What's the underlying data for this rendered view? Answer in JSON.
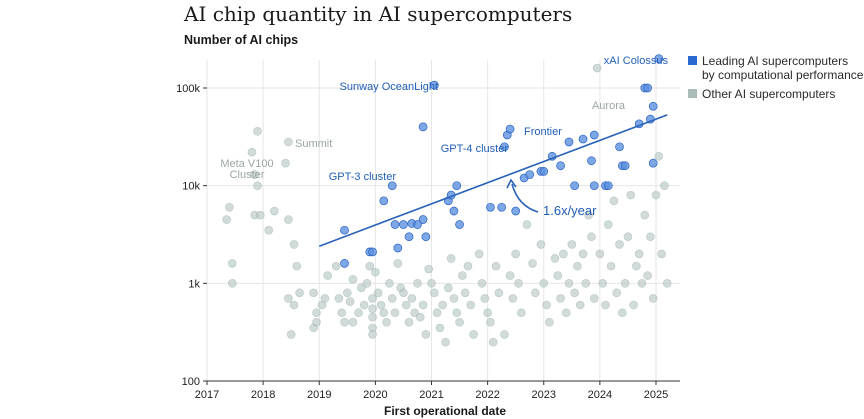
{
  "title": "AI chip quantity in AI supercomputers",
  "colors": {
    "leading": "#2a6ad0",
    "other": "#a9bcb9",
    "trend": "#2a63b8"
  },
  "chart_data": {
    "type": "scatter",
    "title": "AI chip quantity in AI supercomputers",
    "ylabel": "Number of AI chips",
    "xlabel": "First operational date",
    "yscale": "log",
    "ylim": [
      100,
      200000
    ],
    "xlim": [
      2017,
      2025.25
    ],
    "x_ticks": [
      {
        "v": 2017,
        "label": "2017"
      },
      {
        "v": 2018,
        "label": "2018"
      },
      {
        "v": 2019,
        "label": "2019"
      },
      {
        "v": 2020,
        "label": "2020"
      },
      {
        "v": 2021,
        "label": "2021"
      },
      {
        "v": 2022,
        "label": "2022"
      },
      {
        "v": 2023,
        "label": "2023"
      },
      {
        "v": 2024,
        "label": "2024"
      },
      {
        "v": 2025,
        "label": "2025"
      }
    ],
    "y_ticks": [
      {
        "v": 100,
        "label": "100"
      },
      {
        "v": 1000,
        "label": "1k"
      },
      {
        "v": 10000,
        "label": "10k"
      },
      {
        "v": 100000,
        "label": "100k"
      }
    ],
    "legend": [
      {
        "name": "Leading AI supercomputers by computational performance",
        "lines": [
          "Leading AI supercomputers",
          "by computational performance"
        ],
        "color": "#2a6ad0"
      },
      {
        "name": "Other AI supercomputers",
        "lines": [
          "Other AI supercomputers"
        ],
        "color": "#a9bcb9"
      }
    ],
    "trend": {
      "rate_label": "1.6x/year",
      "x": [
        2019,
        2025.2
      ],
      "y": [
        2400,
        53000
      ]
    },
    "annotations": [
      {
        "text": "xAI Colossus",
        "x": 2025.05,
        "y": 200000,
        "series": "leading"
      },
      {
        "text": "Sunway OceanLight",
        "x": 2021.05,
        "y": 107000,
        "series": "leading"
      },
      {
        "text": "Frontier",
        "x": 2022.4,
        "y": 38000,
        "series": "leading"
      },
      {
        "text": "GPT-4 cluster",
        "x": 2022.3,
        "y": 25000,
        "series": "leading"
      },
      {
        "text": "GPT-3 cluster",
        "x": 2020.3,
        "y": 10000,
        "series": "leading"
      },
      {
        "text": "Aurora",
        "x": 2024.2,
        "y": 63000,
        "series": "other"
      },
      {
        "text": "Summit",
        "x": 2018.4,
        "y": 28000,
        "series": "other"
      },
      {
        "text": "Meta V100 Cluster",
        "lines": [
          "Meta V100",
          "Cluster"
        ],
        "x": 2017.85,
        "y": 20000,
        "series": "other"
      }
    ],
    "series": [
      {
        "name": "Leading AI supercomputers",
        "points": [
          [
            2019.45,
            3500
          ],
          [
            2019.45,
            1600
          ],
          [
            2019.9,
            2100
          ],
          [
            2019.95,
            2100
          ],
          [
            2020.15,
            7000
          ],
          [
            2020.3,
            10000
          ],
          [
            2020.35,
            4000
          ],
          [
            2020.4,
            2300
          ],
          [
            2020.5,
            4000
          ],
          [
            2020.6,
            3000
          ],
          [
            2020.65,
            4100
          ],
          [
            2020.75,
            4000
          ],
          [
            2020.85,
            4500
          ],
          [
            2020.85,
            40000
          ],
          [
            2020.9,
            3000
          ],
          [
            2021.05,
            107000
          ],
          [
            2021.3,
            7000
          ],
          [
            2021.35,
            8000
          ],
          [
            2021.4,
            5500
          ],
          [
            2021.45,
            10000
          ],
          [
            2021.5,
            4000
          ],
          [
            2022.05,
            6000
          ],
          [
            2022.25,
            6000
          ],
          [
            2022.3,
            25000
          ],
          [
            2022.35,
            33000
          ],
          [
            2022.4,
            38000
          ],
          [
            2022.5,
            5500
          ],
          [
            2022.65,
            12000
          ],
          [
            2022.75,
            13000
          ],
          [
            2022.95,
            14000
          ],
          [
            2023.0,
            14000
          ],
          [
            2023.15,
            20000
          ],
          [
            2023.3,
            16000
          ],
          [
            2023.45,
            28000
          ],
          [
            2023.55,
            10000
          ],
          [
            2023.7,
            30000
          ],
          [
            2023.85,
            18000
          ],
          [
            2023.9,
            33000
          ],
          [
            2023.9,
            10000
          ],
          [
            2024.1,
            10000
          ],
          [
            2024.15,
            10000
          ],
          [
            2024.4,
            16000
          ],
          [
            2024.45,
            16000
          ],
          [
            2024.35,
            25000
          ],
          [
            2024.7,
            43000
          ],
          [
            2024.8,
            100000
          ],
          [
            2024.85,
            100000
          ],
          [
            2024.9,
            48000
          ],
          [
            2024.95,
            65000
          ],
          [
            2024.95,
            17000
          ],
          [
            2025.05,
            200000
          ]
        ]
      },
      {
        "name": "Other AI supercomputers",
        "points": [
          [
            2017.35,
            4500
          ],
          [
            2017.4,
            6000
          ],
          [
            2017.45,
            1600
          ],
          [
            2017.45,
            1000
          ],
          [
            2017.8,
            22000
          ],
          [
            2017.9,
            36000
          ],
          [
            2017.85,
            13000
          ],
          [
            2017.9,
            10000
          ],
          [
            2017.85,
            5000
          ],
          [
            2017.95,
            5000
          ],
          [
            2018.1,
            3500
          ],
          [
            2018.2,
            5500
          ],
          [
            2018.4,
            17000
          ],
          [
            2018.45,
            28000
          ],
          [
            2018.45,
            4500
          ],
          [
            2018.45,
            700
          ],
          [
            2018.55,
            600
          ],
          [
            2018.5,
            300
          ],
          [
            2018.6,
            1500
          ],
          [
            2018.65,
            800
          ],
          [
            2018.55,
            2500
          ],
          [
            2018.9,
            350
          ],
          [
            2018.95,
            400
          ],
          [
            2018.95,
            500
          ],
          [
            2018.9,
            800
          ],
          [
            2019.05,
            600
          ],
          [
            2019.1,
            700
          ],
          [
            2019.15,
            1200
          ],
          [
            2019.3,
            1500
          ],
          [
            2019.35,
            700
          ],
          [
            2019.4,
            500
          ],
          [
            2019.45,
            400
          ],
          [
            2019.5,
            800
          ],
          [
            2019.55,
            650
          ],
          [
            2019.6,
            1100
          ],
          [
            2019.6,
            400
          ],
          [
            2019.7,
            500
          ],
          [
            2019.75,
            900
          ],
          [
            2019.8,
            600
          ],
          [
            2019.85,
            1000
          ],
          [
            2019.9,
            1500
          ],
          [
            2019.95,
            700
          ],
          [
            2019.95,
            550
          ],
          [
            2019.95,
            450
          ],
          [
            2019.95,
            350
          ],
          [
            2019.95,
            300
          ],
          [
            2020.0,
            1300
          ],
          [
            2020.05,
            800
          ],
          [
            2020.1,
            600
          ],
          [
            2020.15,
            500
          ],
          [
            2020.2,
            400
          ],
          [
            2020.25,
            1000
          ],
          [
            2020.3,
            700
          ],
          [
            2020.35,
            500
          ],
          [
            2020.4,
            1600
          ],
          [
            2020.45,
            900
          ],
          [
            2020.5,
            800
          ],
          [
            2020.55,
            600
          ],
          [
            2020.6,
            400
          ],
          [
            2020.65,
            700
          ],
          [
            2020.7,
            500
          ],
          [
            2020.75,
            1000
          ],
          [
            2020.8,
            450
          ],
          [
            2020.85,
            600
          ],
          [
            2020.9,
            300
          ],
          [
            2020.95,
            1400
          ],
          [
            2021.0,
            1000
          ],
          [
            2021.05,
            800
          ],
          [
            2021.1,
            500
          ],
          [
            2021.15,
            350
          ],
          [
            2021.2,
            600
          ],
          [
            2021.25,
            250
          ],
          [
            2021.3,
            900
          ],
          [
            2021.35,
            1800
          ],
          [
            2021.4,
            700
          ],
          [
            2021.45,
            500
          ],
          [
            2021.5,
            400
          ],
          [
            2021.55,
            1200
          ],
          [
            2021.6,
            800
          ],
          [
            2021.65,
            1500
          ],
          [
            2021.7,
            600
          ],
          [
            2021.75,
            300
          ],
          [
            2021.85,
            2000
          ],
          [
            2021.9,
            1000
          ],
          [
            2021.95,
            700
          ],
          [
            2022.0,
            500
          ],
          [
            2022.05,
            400
          ],
          [
            2022.1,
            250
          ],
          [
            2022.15,
            1500
          ],
          [
            2022.2,
            800
          ],
          [
            2022.3,
            300
          ],
          [
            2022.4,
            1200
          ],
          [
            2022.45,
            700
          ],
          [
            2022.5,
            2000
          ],
          [
            2022.55,
            1000
          ],
          [
            2022.6,
            500
          ],
          [
            2022.7,
            4000
          ],
          [
            2022.8,
            1600
          ],
          [
            2022.85,
            800
          ],
          [
            2022.95,
            2500
          ],
          [
            2023.0,
            1000
          ],
          [
            2023.05,
            600
          ],
          [
            2023.1,
            400
          ],
          [
            2023.2,
            1800
          ],
          [
            2023.25,
            1200
          ],
          [
            2023.3,
            700
          ],
          [
            2023.35,
            2000
          ],
          [
            2023.4,
            500
          ],
          [
            2023.45,
            1000
          ],
          [
            2023.5,
            2500
          ],
          [
            2023.55,
            800
          ],
          [
            2023.6,
            1500
          ],
          [
            2023.65,
            600
          ],
          [
            2023.7,
            2000
          ],
          [
            2023.75,
            1000
          ],
          [
            2023.8,
            5000
          ],
          [
            2023.85,
            3000
          ],
          [
            2023.9,
            700
          ],
          [
            2023.95,
            160000
          ],
          [
            2024.0,
            2000
          ],
          [
            2024.05,
            1000
          ],
          [
            2024.1,
            600
          ],
          [
            2024.15,
            4000
          ],
          [
            2024.2,
            1500
          ],
          [
            2024.25,
            7000
          ],
          [
            2024.3,
            800
          ],
          [
            2024.35,
            2500
          ],
          [
            2024.4,
            500
          ],
          [
            2024.45,
            1000
          ],
          [
            2024.5,
            3000
          ],
          [
            2024.55,
            8000
          ],
          [
            2024.6,
            600
          ],
          [
            2024.65,
            1500
          ],
          [
            2024.7,
            2000
          ],
          [
            2024.75,
            1000
          ],
          [
            2024.8,
            5000
          ],
          [
            2024.85,
            1200
          ],
          [
            2024.9,
            3000
          ],
          [
            2024.95,
            700
          ],
          [
            2025.0,
            8000
          ],
          [
            2025.05,
            20000
          ],
          [
            2025.1,
            2000
          ],
          [
            2025.15,
            10000
          ],
          [
            2025.2,
            1000
          ]
        ]
      }
    ]
  }
}
